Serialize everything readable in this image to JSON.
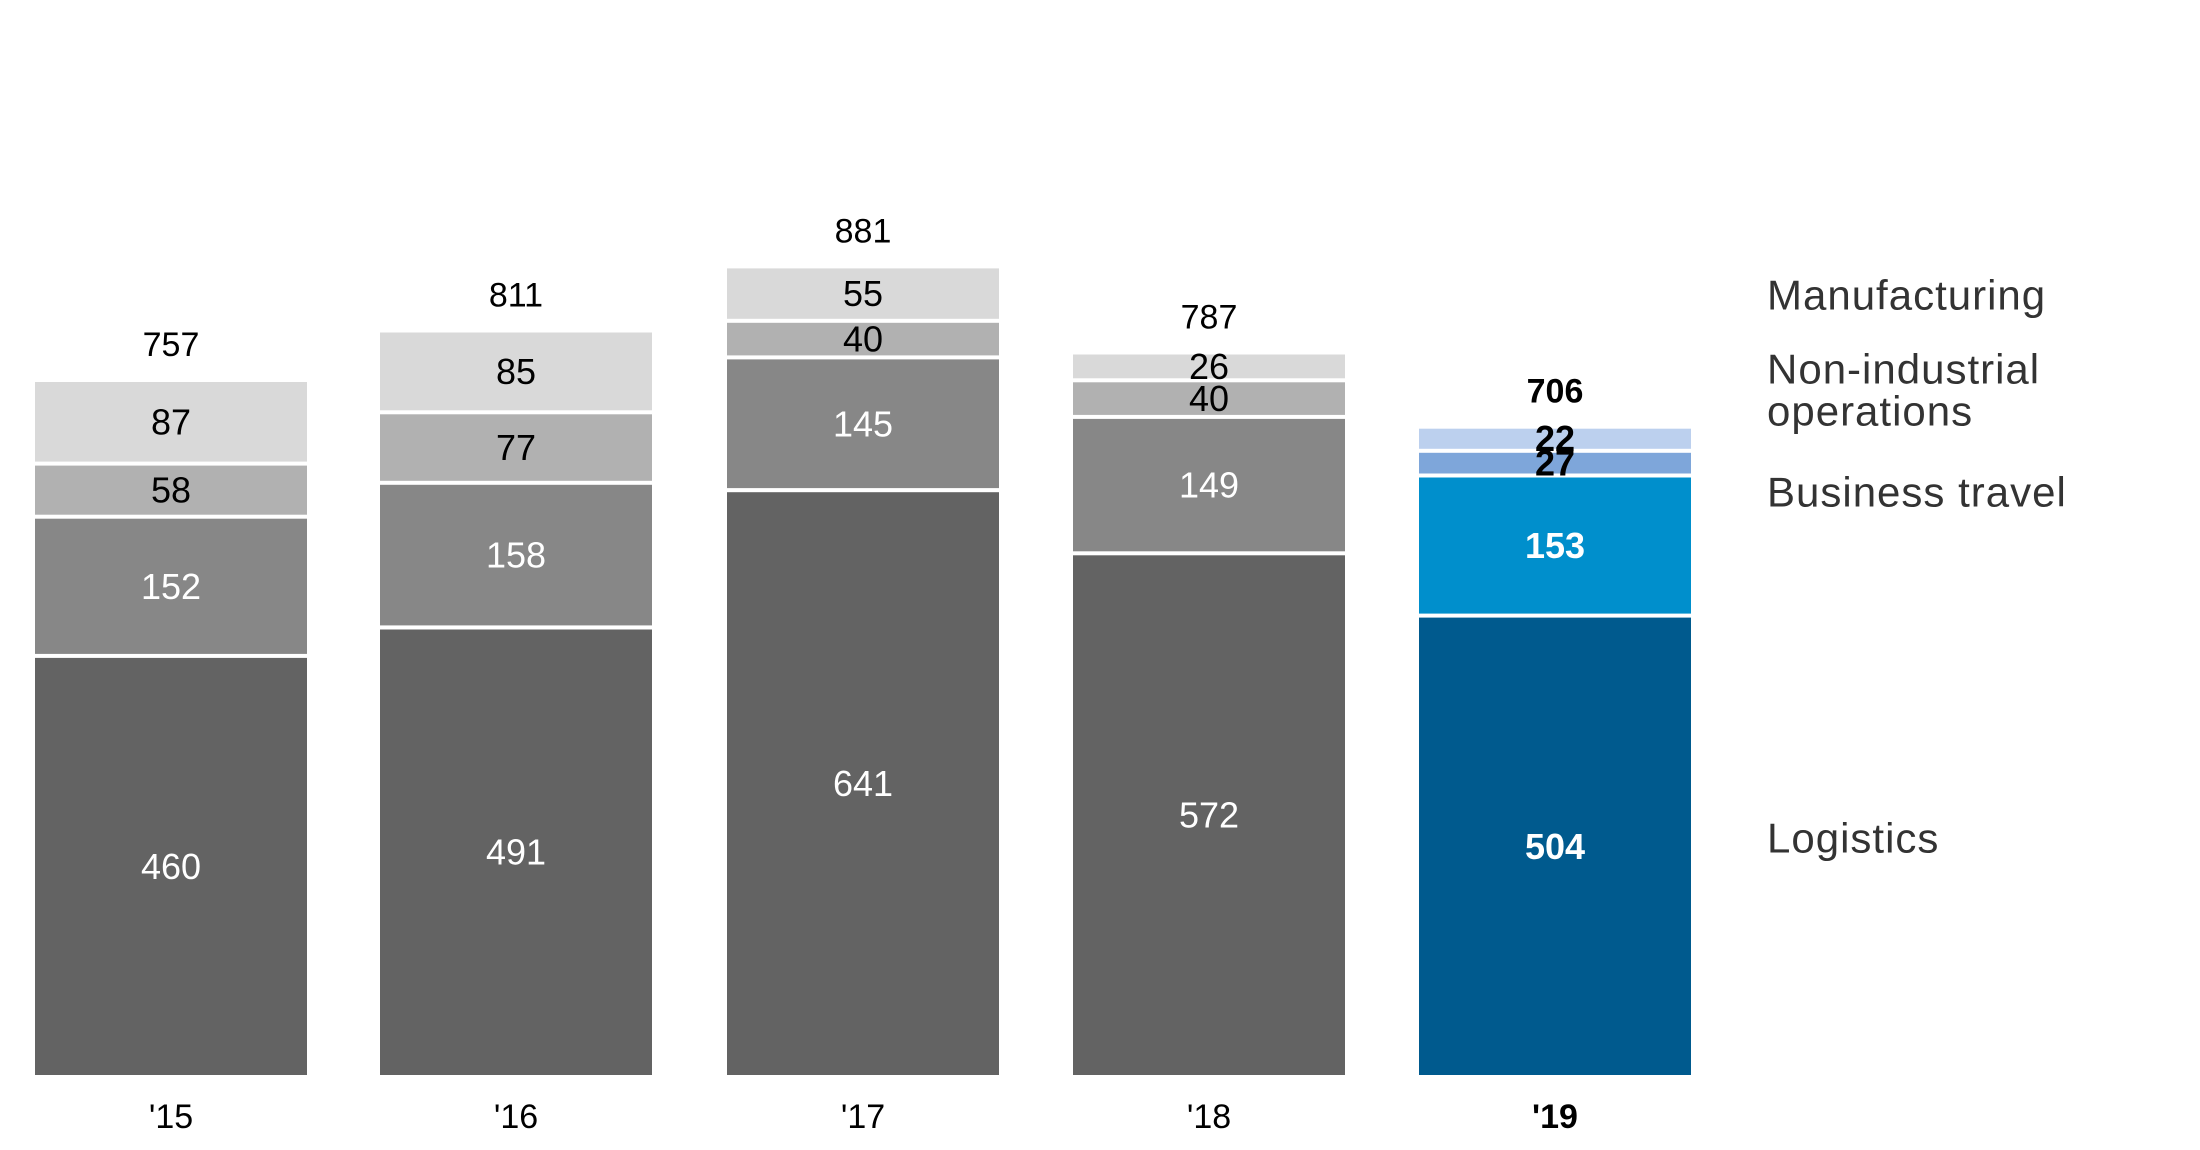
{
  "chart_data": {
    "type": "bar",
    "stacked": true,
    "categories": [
      "'15",
      "'16",
      "'17",
      "'18",
      "'19"
    ],
    "highlight_category": "'19",
    "totals": [
      757,
      811,
      881,
      787,
      706
    ],
    "series": [
      {
        "name": "Logistics",
        "values": [
          460,
          491,
          641,
          572,
          504
        ],
        "color": "#636363",
        "highlight_color": "#005A8E"
      },
      {
        "name": "Business travel",
        "values": [
          152,
          158,
          145,
          149,
          153
        ],
        "color": "#878787",
        "highlight_color": "#008FCC"
      },
      {
        "name": "Non-industrial operations",
        "values": [
          58,
          77,
          40,
          40,
          27
        ],
        "color": "#B1B1B1",
        "highlight_color": "#7EA6DA"
      },
      {
        "name": "Manufacturing",
        "values": [
          87,
          85,
          55,
          26,
          22
        ],
        "color": "#D9D9D9",
        "highlight_color": "#BCD0EE"
      }
    ],
    "legend_lines": [
      [
        "Manufacturing"
      ],
      [
        "Non-industrial",
        "operations"
      ],
      [
        "Business travel"
      ],
      [
        "Logistics"
      ]
    ],
    "title": "",
    "xlabel": "",
    "ylabel": "",
    "grid": false,
    "legend_position": "right"
  }
}
